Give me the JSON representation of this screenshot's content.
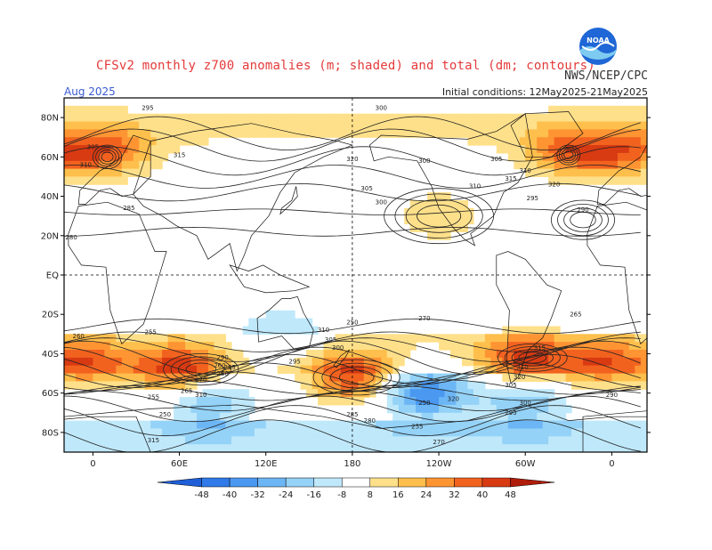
{
  "header": {
    "title": "CFSv2 monthly z700 anomalies (m; shaded) and total (dm; contours)",
    "agency": "NWS/NCEP/CPC",
    "month": "Aug 2025",
    "initial_conditions": "Initial conditions: 12May2025-21May2025",
    "logo_text": "NOAA"
  },
  "axes": {
    "lat_labels": [
      "80N",
      "60N",
      "40N",
      "20N",
      "EQ",
      "20S",
      "40S",
      "60S",
      "80S"
    ],
    "lon_labels": [
      "0",
      "60E",
      "120E",
      "180",
      "120W",
      "60W",
      "0"
    ]
  },
  "contour_labels": [
    "295",
    "300",
    "305",
    "310",
    "315",
    "320",
    "300",
    "305",
    "310",
    "315",
    "320",
    "310",
    "305",
    "300",
    "295",
    "290",
    "285",
    "280",
    "270",
    "265",
    "260",
    "255",
    "250",
    "310",
    "305",
    "300",
    "295",
    "290",
    "285",
    "280",
    "270",
    "265",
    "260",
    "255",
    "250",
    "310",
    "315",
    "320",
    "310",
    "315",
    "320",
    "305",
    "300",
    "295",
    "290",
    "285",
    "280",
    "270",
    "260",
    "255",
    "250"
  ],
  "colorbar": {
    "ticks": [
      "-48",
      "-40",
      "-32",
      "-24",
      "-16",
      "-8",
      "8",
      "16",
      "24",
      "32",
      "40",
      "48"
    ],
    "colors": [
      "#1f5fd8",
      "#2f7ae8",
      "#4a98f0",
      "#6db6f5",
      "#94d2f7",
      "#bfe8fb",
      "#ffffff",
      "#ffe08a",
      "#ffbf4c",
      "#ff9433",
      "#f2621f",
      "#d83a12",
      "#b01c0a"
    ]
  },
  "anomaly_centers": [
    {
      "lon": 60,
      "lat": -48,
      "value": 40
    },
    {
      "lon": 180,
      "lat": -52,
      "value": 40
    },
    {
      "lon": 300,
      "lat": -42,
      "value": 36
    },
    {
      "lon": 355,
      "lat": -45,
      "value": 32
    },
    {
      "lon": 10,
      "lat": 62,
      "value": 30
    },
    {
      "lon": 330,
      "lat": 62,
      "value": 30
    },
    {
      "lon": 240,
      "lat": 30,
      "value": 16
    },
    {
      "lon": 230,
      "lat": -60,
      "value": -40
    },
    {
      "lon": 80,
      "lat": -65,
      "value": -24
    },
    {
      "lon": 130,
      "lat": -30,
      "value": -16
    },
    {
      "lon": 300,
      "lat": -65,
      "value": -24
    }
  ]
}
